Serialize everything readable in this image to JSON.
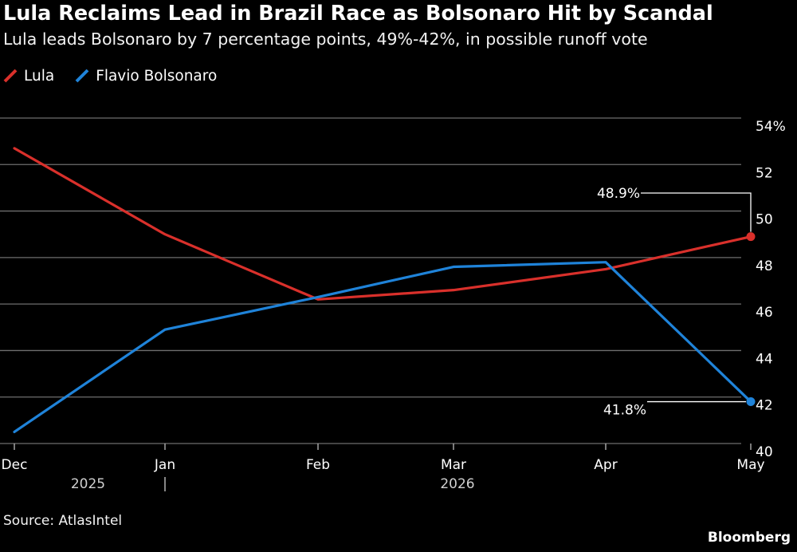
{
  "header": {
    "title": "Lula Reclaims Lead in Brazil Race as Bolsonaro Hit by Scandal",
    "subtitle": "Lula leads Bolsonaro by 7 percentage points, 49%-42%, in possible runoff vote"
  },
  "legend": [
    {
      "label": "Lula",
      "color": "#d9302b"
    },
    {
      "label": "Flavio Bolsonaro",
      "color": "#1f83d9"
    }
  ],
  "chart_data": {
    "type": "line",
    "x": [
      "Dec",
      "Jan",
      "Feb",
      "Mar",
      "Apr",
      "May"
    ],
    "x_period_labels": [
      {
        "label": "2025",
        "at": "Dec"
      },
      {
        "label": "2026",
        "at": "Mar"
      }
    ],
    "series": [
      {
        "name": "Lula",
        "color": "#d9302b",
        "values": [
          52.7,
          49.0,
          46.2,
          46.6,
          47.5,
          48.9
        ]
      },
      {
        "name": "Flavio Bolsonaro",
        "color": "#1f83d9",
        "values": [
          40.5,
          44.9,
          46.3,
          47.6,
          47.8,
          41.8
        ]
      }
    ],
    "ylim": [
      40,
      54
    ],
    "yticks": [
      40,
      42,
      44,
      46,
      48,
      50,
      52,
      54
    ],
    "ytick_labels": [
      "40",
      "42",
      "44",
      "46",
      "48",
      "50",
      "52",
      "54%"
    ],
    "grid": true,
    "annotations": [
      {
        "series": "Lula",
        "x": "May",
        "y": 48.9,
        "label": "48.9%"
      },
      {
        "series": "Flavio Bolsonaro",
        "x": "May",
        "y": 41.8,
        "label": "41.8%"
      }
    ],
    "legend_position": "top-left"
  },
  "footer": {
    "source": "Source: AtlasIntel",
    "brand": "Bloomberg"
  },
  "colors": {
    "background": "#000000",
    "grid": "#6e6e6e",
    "text": "#ffffff"
  }
}
